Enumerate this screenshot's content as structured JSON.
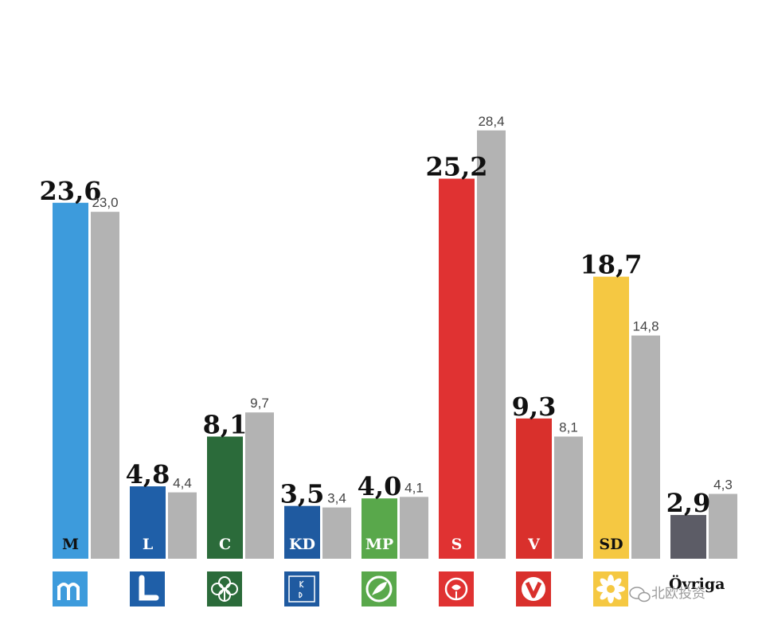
{
  "chart_data": {
    "type": "bar",
    "categories": [
      "M",
      "L",
      "C",
      "KD",
      "MP",
      "S",
      "V",
      "SD",
      "Övriga"
    ],
    "series": [
      {
        "values": [
          23.6,
          4.8,
          8.1,
          3.5,
          4.0,
          25.2,
          9.3,
          18.7,
          2.9
        ]
      },
      {
        "values": [
          23.0,
          4.4,
          9.7,
          3.4,
          4.1,
          28.4,
          8.1,
          14.8,
          4.3
        ]
      }
    ],
    "value_labels_current": [
      "23,6",
      "4,8",
      "8,1",
      "3,5",
      "4,0",
      "25,2",
      "9,3",
      "18,7",
      "2,9"
    ],
    "value_labels_previous": [
      "23,0",
      "4,4",
      "9,7",
      "3,4",
      "4,1",
      "28,4",
      "8,1",
      "14,8",
      "4,3"
    ],
    "colors": [
      "#3d9bdc",
      "#1f5fa8",
      "#2b6b3a",
      "#1f5aa0",
      "#59a84b",
      "#e03232",
      "#d9302c",
      "#f5c842",
      "#5c5c66"
    ],
    "previous_color": "#b3b3b3",
    "abbr_colors": [
      "#111111",
      "#ffffff",
      "#ffffff",
      "#ffffff",
      "#ffffff",
      "#ffffff",
      "#ffffff",
      "#111111",
      "#111111"
    ],
    "icons": [
      "m-logo-icon",
      "l-logo-icon",
      "clover-icon",
      "kd-logo-icon",
      "leaf-icon",
      "rose-icon",
      "v-logo-icon",
      "daisy-icon",
      ""
    ],
    "ylim": [
      0,
      30
    ],
    "grid": false,
    "legend": "none"
  },
  "watermark": "北欧投资"
}
